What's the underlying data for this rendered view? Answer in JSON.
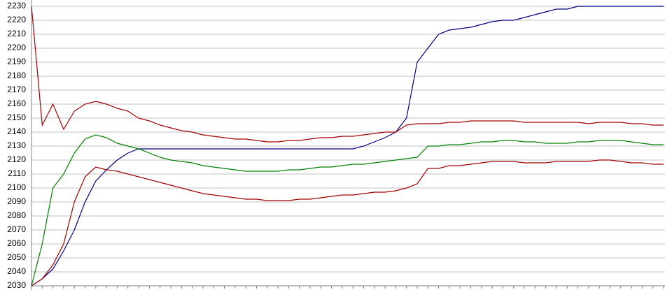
{
  "chart_data": {
    "type": "line",
    "categories": [
      null,
      null,
      null,
      null,
      null,
      null,
      null,
      null,
      null,
      null,
      null,
      null,
      null,
      null,
      null,
      null,
      null,
      null,
      null,
      null,
      null,
      null,
      null,
      null,
      null,
      null,
      null,
      null,
      null,
      null,
      null,
      null,
      null,
      null,
      null,
      null,
      null,
      null,
      null,
      null,
      null,
      null,
      null,
      null,
      null,
      null,
      null,
      null,
      null,
      null,
      null,
      null,
      null,
      null,
      null,
      null,
      null,
      null,
      null,
      null
    ],
    "series": [
      {
        "color": "#000080",
        "values": [
          2030,
          2035,
          2042,
          2055,
          2070,
          2090,
          2105,
          2113,
          2120,
          2125,
          2128,
          2128,
          2128,
          2128,
          2128,
          2128,
          2128,
          2128,
          2128,
          2128,
          2128,
          2128,
          2128,
          2128,
          2128,
          2128,
          2128,
          2128,
          2128,
          2128,
          2128,
          2130,
          2133,
          2136,
          2140,
          2150,
          2190,
          2200,
          2210,
          2213,
          2214,
          2215,
          2217,
          2219,
          2220,
          2220,
          2222,
          2224,
          2226,
          2228,
          2228,
          2230,
          2230,
          2230,
          2230,
          2230,
          2230,
          2230,
          2230,
          2230
        ]
      },
      {
        "color": "#a00000",
        "values": [
          2230,
          2145,
          2160,
          2142,
          2155,
          2160,
          2162,
          2160,
          2157,
          2155,
          2150,
          2148,
          2145,
          2143,
          2141,
          2140,
          2138,
          2137,
          2136,
          2135,
          2135,
          2134,
          2133,
          2133,
          2134,
          2134,
          2135,
          2136,
          2136,
          2137,
          2137,
          2138,
          2139,
          2140,
          2140,
          2145,
          2146,
          2146,
          2146,
          2147,
          2147,
          2148,
          2148,
          2148,
          2148,
          2148,
          2147,
          2147,
          2147,
          2147,
          2147,
          2147,
          2146,
          2147,
          2147,
          2147,
          2146,
          2146,
          2145,
          2145
        ]
      },
      {
        "color": "#008000",
        "values": [
          2030,
          2060,
          2100,
          2110,
          2125,
          2135,
          2138,
          2136,
          2132,
          2130,
          2128,
          2125,
          2122,
          2120,
          2119,
          2118,
          2116,
          2115,
          2114,
          2113,
          2112,
          2112,
          2112,
          2112,
          2113,
          2113,
          2114,
          2115,
          2115,
          2116,
          2117,
          2117,
          2118,
          2119,
          2120,
          2121,
          2122,
          2130,
          2130,
          2131,
          2131,
          2132,
          2133,
          2133,
          2134,
          2134,
          2133,
          2133,
          2132,
          2132,
          2132,
          2133,
          2133,
          2134,
          2134,
          2134,
          2133,
          2132,
          2131,
          2131
        ]
      },
      {
        "color": "#a00000",
        "values": [
          2030,
          2035,
          2045,
          2060,
          2090,
          2108,
          2115,
          2113,
          2112,
          2110,
          2108,
          2106,
          2104,
          2102,
          2100,
          2098,
          2096,
          2095,
          2094,
          2093,
          2092,
          2092,
          2091,
          2091,
          2091,
          2092,
          2092,
          2093,
          2094,
          2095,
          2095,
          2096,
          2097,
          2097,
          2098,
          2100,
          2103,
          2114,
          2114,
          2116,
          2116,
          2117,
          2118,
          2119,
          2119,
          2119,
          2118,
          2118,
          2118,
          2119,
          2119,
          2119,
          2119,
          2120,
          2120,
          2119,
          2118,
          2118,
          2117,
          2117
        ]
      }
    ],
    "ylim": [
      2030,
      2230
    ],
    "yticks": [
      2030,
      2040,
      2050,
      2060,
      2070,
      2080,
      2090,
      2100,
      2110,
      2120,
      2130,
      2140,
      2150,
      2160,
      2170,
      2180,
      2190,
      2200,
      2210,
      2220,
      2230
    ],
    "grid": true
  }
}
